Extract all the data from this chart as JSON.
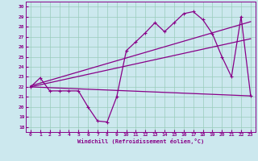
{
  "xlabel": "Windchill (Refroidissement éolien,°C)",
  "bg_color": "#cce8ee",
  "line_color": "#880088",
  "ylim": [
    17.5,
    30.5
  ],
  "xlim": [
    -0.5,
    23.5
  ],
  "yticks": [
    18,
    19,
    20,
    21,
    22,
    23,
    24,
    25,
    26,
    27,
    28,
    29,
    30
  ],
  "xticks": [
    0,
    1,
    2,
    3,
    4,
    5,
    6,
    7,
    8,
    9,
    10,
    11,
    12,
    13,
    14,
    15,
    16,
    17,
    18,
    19,
    20,
    21,
    22,
    23
  ],
  "line1_x": [
    0,
    1,
    2,
    3,
    4,
    5,
    6,
    7,
    8,
    9,
    10,
    11,
    12,
    13,
    14,
    15,
    16,
    17,
    18,
    19,
    20,
    21,
    22,
    23
  ],
  "line1_y": [
    22.0,
    22.9,
    21.6,
    21.6,
    21.6,
    21.6,
    20.0,
    18.6,
    18.5,
    21.0,
    25.6,
    26.5,
    27.4,
    28.4,
    27.5,
    28.4,
    29.3,
    29.5,
    28.7,
    27.3,
    25.0,
    23.0,
    29.0,
    21.1
  ],
  "line2_x": [
    0,
    23
  ],
  "line2_y": [
    22.0,
    21.1
  ],
  "line3_x": [
    0,
    23
  ],
  "line3_y": [
    22.1,
    28.5
  ],
  "line4_x": [
    0,
    23
  ],
  "line4_y": [
    22.0,
    26.8
  ],
  "grid_color": "#99ccbb",
  "spine_color": "#880088"
}
